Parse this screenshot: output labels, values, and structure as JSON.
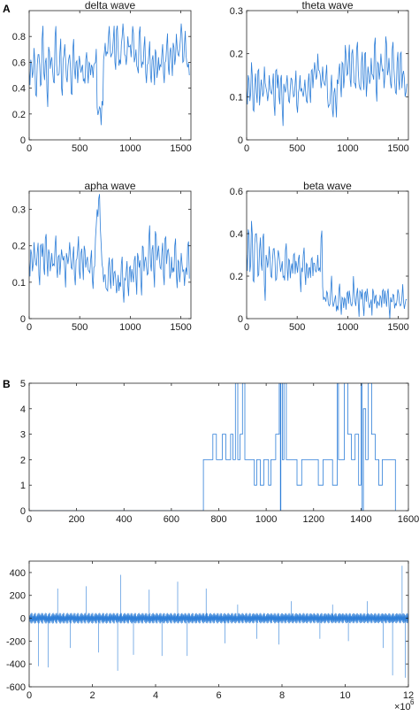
{
  "panel_labels": [
    "A",
    "B"
  ],
  "colors": {
    "series": "#2f7fd8",
    "axis": "#262626",
    "background": "#ffffff"
  },
  "chart_data": [
    {
      "type": "line",
      "title": "delta wave",
      "xlim": [
        0,
        1600
      ],
      "ylim": [
        0,
        1.0
      ],
      "xticks": [
        0,
        500,
        1000,
        1500
      ],
      "yticks": [
        0,
        0.2,
        0.4,
        0.6,
        0.8
      ],
      "grid": false,
      "series": [
        {
          "x_step": 16,
          "values": [
            0.55,
            0.62,
            0.48,
            0.71,
            0.35,
            0.58,
            0.66,
            0.42,
            0.78,
            0.52,
            0.6,
            0.38,
            0.72,
            0.55,
            0.64,
            0.45,
            0.8,
            0.58,
            0.5,
            0.68,
            0.4,
            0.62,
            0.74,
            0.48,
            0.57,
            0.66,
            0.36,
            0.7,
            0.55,
            0.6,
            0.44,
            0.65,
            0.52,
            0.58,
            0.47,
            0.62,
            0.54,
            0.6,
            0.5,
            0.56,
            0.58,
            0.6,
            0.25,
            0.22,
            0.24,
            0.3,
            0.62,
            0.75,
            0.68,
            0.8,
            0.72,
            0.66,
            0.78,
            0.6,
            0.85,
            0.7,
            0.62,
            0.74,
            0.9,
            0.66,
            0.58,
            0.8,
            0.72,
            0.64,
            0.88,
            0.6,
            0.7,
            0.55,
            0.82,
            0.66,
            0.6,
            0.72,
            0.52,
            0.58,
            0.66,
            0.5,
            0.62,
            0.55,
            0.7,
            0.48,
            0.64,
            0.58,
            0.66,
            0.52,
            0.6,
            0.72,
            0.56,
            0.68,
            0.62,
            0.75,
            0.58,
            0.82,
            0.66,
            0.7,
            0.9,
            0.6,
            0.74,
            0.65,
            0.56,
            0.5
          ]
        }
      ]
    },
    {
      "type": "line",
      "title": "theta wave",
      "xlim": [
        0,
        1600
      ],
      "ylim": [
        0,
        0.3
      ],
      "xticks": [
        0,
        500,
        1000,
        1500
      ],
      "yticks": [
        0,
        0.1,
        0.2,
        0.3
      ],
      "grid": false,
      "series": [
        {
          "x_step": 16,
          "values": [
            0.12,
            0.15,
            0.09,
            0.18,
            0.07,
            0.13,
            0.11,
            0.16,
            0.08,
            0.14,
            0.1,
            0.17,
            0.12,
            0.09,
            0.15,
            0.11,
            0.13,
            0.08,
            0.16,
            0.12,
            0.1,
            0.14,
            0.07,
            0.13,
            0.11,
            0.15,
            0.09,
            0.12,
            0.14,
            0.1,
            0.13,
            0.08,
            0.11,
            0.15,
            0.12,
            0.1,
            0.14,
            0.09,
            0.13,
            0.11,
            0.16,
            0.12,
            0.18,
            0.14,
            0.2,
            0.16,
            0.12,
            0.17,
            0.13,
            0.15,
            0.1,
            0.08,
            0.12,
            0.07,
            0.11,
            0.09,
            0.14,
            0.16,
            0.13,
            0.18,
            0.12,
            0.22,
            0.15,
            0.19,
            0.14,
            0.2,
            0.17,
            0.13,
            0.21,
            0.16,
            0.12,
            0.18,
            0.14,
            0.2,
            0.1,
            0.17,
            0.13,
            0.19,
            0.15,
            0.22,
            0.12,
            0.18,
            0.14,
            0.2,
            0.16,
            0.12,
            0.24,
            0.15,
            0.19,
            0.13,
            0.21,
            0.17,
            0.11,
            0.18,
            0.14,
            0.2,
            0.12,
            0.16,
            0.1,
            0.13
          ]
        }
      ]
    },
    {
      "type": "line",
      "title": "apha wave",
      "xlim": [
        0,
        1600
      ],
      "ylim": [
        0,
        0.35
      ],
      "xticks": [
        0,
        500,
        1000,
        1500
      ],
      "yticks": [
        0,
        0.1,
        0.2,
        0.3
      ],
      "grid": false,
      "series": [
        {
          "x_step": 16,
          "values": [
            0.16,
            0.19,
            0.13,
            0.21,
            0.15,
            0.18,
            0.12,
            0.2,
            0.17,
            0.14,
            0.22,
            0.16,
            0.19,
            0.13,
            0.18,
            0.15,
            0.2,
            0.14,
            0.17,
            0.12,
            0.19,
            0.16,
            0.13,
            0.18,
            0.15,
            0.21,
            0.14,
            0.17,
            0.12,
            0.16,
            0.19,
            0.13,
            0.18,
            0.15,
            0.2,
            0.14,
            0.17,
            0.13,
            0.16,
            0.11,
            0.14,
            0.22,
            0.3,
            0.33,
            0.25,
            0.15,
            0.1,
            0.12,
            0.08,
            0.14,
            0.11,
            0.16,
            0.09,
            0.13,
            0.07,
            0.12,
            0.1,
            0.15,
            0.08,
            0.11,
            0.13,
            0.09,
            0.14,
            0.1,
            0.12,
            0.16,
            0.11,
            0.18,
            0.14,
            0.1,
            0.2,
            0.13,
            0.17,
            0.12,
            0.22,
            0.15,
            0.19,
            0.13,
            0.24,
            0.16,
            0.2,
            0.14,
            0.18,
            0.12,
            0.22,
            0.15,
            0.19,
            0.11,
            0.17,
            0.14,
            0.2,
            0.12,
            0.16,
            0.1,
            0.18,
            0.13,
            0.09,
            0.14,
            0.2,
            0.11
          ]
        }
      ]
    },
    {
      "type": "line",
      "title": "beta wave",
      "xlim": [
        0,
        1600
      ],
      "ylim": [
        0,
        0.6
      ],
      "xticks": [
        0,
        500,
        1000,
        1500
      ],
      "yticks": [
        0,
        0.2,
        0.4,
        0.6
      ],
      "grid": false,
      "series": [
        {
          "x_step": 16,
          "values": [
            0.3,
            0.42,
            0.22,
            0.46,
            0.18,
            0.35,
            0.4,
            0.2,
            0.32,
            0.26,
            0.38,
            0.16,
            0.3,
            0.24,
            0.34,
            0.2,
            0.28,
            0.33,
            0.18,
            0.26,
            0.3,
            0.22,
            0.27,
            0.2,
            0.32,
            0.24,
            0.28,
            0.19,
            0.26,
            0.3,
            0.21,
            0.25,
            0.28,
            0.2,
            0.24,
            0.3,
            0.22,
            0.26,
            0.19,
            0.24,
            0.28,
            0.2,
            0.26,
            0.22,
            0.3,
            0.24,
            0.38,
            0.15,
            0.1,
            0.08,
            0.12,
            0.06,
            0.14,
            0.09,
            0.07,
            0.11,
            0.06,
            0.13,
            0.08,
            0.1,
            0.05,
            0.09,
            0.12,
            0.07,
            0.1,
            0.06,
            0.2,
            0.08,
            0.11,
            0.07,
            0.13,
            0.09,
            0.06,
            0.12,
            0.08,
            0.1,
            0.05,
            0.09,
            0.14,
            0.07,
            0.11,
            0.08,
            0.06,
            0.1,
            0.13,
            0.07,
            0.09,
            0.12,
            0.06,
            0.1,
            0.08,
            0.11,
            0.07,
            0.09,
            0.12,
            0.06,
            0.1,
            0.08,
            0.07,
            0.09
          ]
        }
      ]
    },
    {
      "type": "line",
      "title": "",
      "xlim": [
        0,
        1600
      ],
      "ylim": [
        0,
        5
      ],
      "xticks": [
        0,
        200,
        400,
        600,
        800,
        1000,
        1200,
        1400,
        1600
      ],
      "xtick_labels": [
        "0",
        "200",
        "400",
        "600",
        "800",
        "1000",
        "1200",
        "1400",
        "1600"
      ],
      "yticks": [
        0,
        1,
        2,
        3,
        4,
        5
      ],
      "grid": false,
      "step": true,
      "series": [
        {
          "points": [
            [
              0,
              0
            ],
            [
              720,
              0
            ],
            [
              735,
              2
            ],
            [
              760,
              2
            ],
            [
              775,
              3
            ],
            [
              790,
              2
            ],
            [
              800,
              2
            ],
            [
              815,
              3
            ],
            [
              830,
              2
            ],
            [
              850,
              3
            ],
            [
              860,
              2
            ],
            [
              870,
              5
            ],
            [
              880,
              2
            ],
            [
              890,
              3
            ],
            [
              900,
              5
            ],
            [
              910,
              2
            ],
            [
              930,
              2
            ],
            [
              950,
              1
            ],
            [
              960,
              2
            ],
            [
              975,
              1
            ],
            [
              990,
              2
            ],
            [
              1010,
              1
            ],
            [
              1020,
              2
            ],
            [
              1040,
              3
            ],
            [
              1055,
              5
            ],
            [
              1060,
              0
            ],
            [
              1062,
              5
            ],
            [
              1068,
              2
            ],
            [
              1075,
              5
            ],
            [
              1085,
              2
            ],
            [
              1110,
              2
            ],
            [
              1130,
              1
            ],
            [
              1150,
              2
            ],
            [
              1200,
              2
            ],
            [
              1220,
              1
            ],
            [
              1240,
              2
            ],
            [
              1260,
              2
            ],
            [
              1280,
              1
            ],
            [
              1300,
              5
            ],
            [
              1305,
              2
            ],
            [
              1320,
              2
            ],
            [
              1330,
              5
            ],
            [
              1345,
              3
            ],
            [
              1360,
              2
            ],
            [
              1375,
              3
            ],
            [
              1390,
              1
            ],
            [
              1400,
              5
            ],
            [
              1405,
              0
            ],
            [
              1410,
              4
            ],
            [
              1420,
              2
            ],
            [
              1430,
              5
            ],
            [
              1445,
              3
            ],
            [
              1460,
              2
            ],
            [
              1475,
              1
            ],
            [
              1490,
              2
            ],
            [
              1510,
              2
            ],
            [
              1530,
              2
            ],
            [
              1545,
              0
            ]
          ]
        }
      ]
    },
    {
      "type": "line",
      "title": "",
      "xlim": [
        0,
        12
      ],
      "ylim": [
        -600,
        500
      ],
      "xticks": [
        0,
        2,
        4,
        6,
        8,
        10,
        12
      ],
      "yticks": [
        -600,
        -400,
        -200,
        0,
        200,
        400
      ],
      "x_multiplier": "×10",
      "x_multiplier_exp": "6",
      "grid": false,
      "series": [
        {
          "type": "signal",
          "baseline_amplitude": 60,
          "spikes": [
            [
              0.3,
              -420
            ],
            [
              0.6,
              -430
            ],
            [
              0.9,
              260
            ],
            [
              1.3,
              -260
            ],
            [
              1.8,
              280
            ],
            [
              2.2,
              -300
            ],
            [
              2.8,
              -460
            ],
            [
              2.9,
              380
            ],
            [
              3.3,
              -320
            ],
            [
              3.8,
              250
            ],
            [
              4.2,
              -330
            ],
            [
              4.7,
              320
            ],
            [
              5.0,
              -330
            ],
            [
              5.6,
              260
            ],
            [
              6.2,
              -220
            ],
            [
              6.6,
              120
            ],
            [
              7.2,
              -180
            ],
            [
              7.9,
              -230
            ],
            [
              8.3,
              150
            ],
            [
              9.2,
              -180
            ],
            [
              9.6,
              120
            ],
            [
              10.1,
              -200
            ],
            [
              10.7,
              150
            ],
            [
              11.2,
              -260
            ],
            [
              11.5,
              -500
            ],
            [
              11.8,
              460
            ],
            [
              11.9,
              -520
            ]
          ]
        }
      ]
    }
  ]
}
